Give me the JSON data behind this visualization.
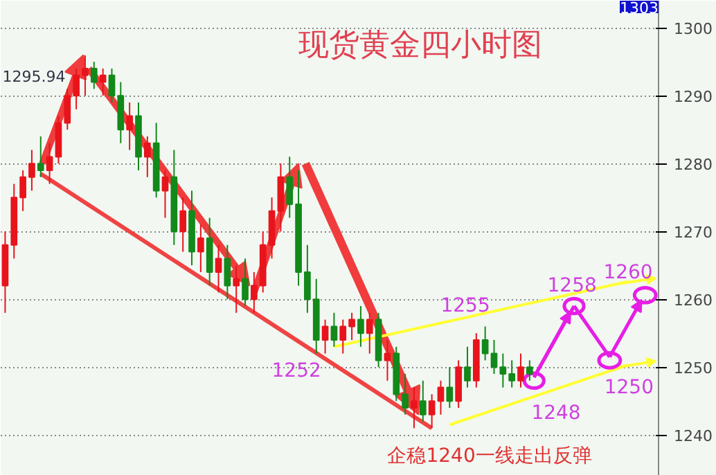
{
  "chart_data": {
    "type": "candlestick",
    "title": "现货黄金四小时图",
    "categories": [
      null,
      null,
      null,
      null,
      null,
      null,
      null,
      null,
      null,
      null,
      null,
      null,
      null,
      null,
      null,
      null,
      null,
      null,
      null,
      null,
      null,
      null,
      null,
      null,
      null,
      null,
      null,
      null,
      null,
      null,
      null,
      null,
      null,
      null,
      null,
      null,
      null,
      null,
      null,
      null,
      null,
      null,
      null,
      null,
      null,
      null,
      null,
      null,
      null,
      null,
      null,
      null,
      null,
      null,
      null,
      null,
      null,
      null,
      null,
      null,
      null,
      null,
      null,
      null,
      null,
      null,
      null,
      null,
      null,
      null,
      null,
      null,
      null,
      null
    ],
    "ohlc": [
      [
        1262,
        1270,
        1258,
        1268
      ],
      [
        1268,
        1277,
        1266,
        1275
      ],
      [
        1275,
        1279,
        1273,
        1278
      ],
      [
        1278,
        1282,
        1276,
        1280
      ],
      [
        1280,
        1284,
        1278,
        1279
      ],
      [
        1279,
        1283,
        1277,
        1281
      ],
      [
        1281,
        1287,
        1280,
        1286
      ],
      [
        1286,
        1291,
        1285,
        1290
      ],
      [
        1290,
        1294,
        1288,
        1293
      ],
      [
        1293,
        1295.94,
        1290,
        1294
      ],
      [
        1294,
        1295,
        1291,
        1292
      ],
      [
        1292,
        1294,
        1290,
        1293
      ],
      [
        1293,
        1294,
        1289,
        1290
      ],
      [
        1290,
        1292,
        1283,
        1285
      ],
      [
        1285,
        1289,
        1282,
        1287
      ],
      [
        1287,
        1289,
        1279,
        1281
      ],
      [
        1281,
        1284,
        1278,
        1283
      ],
      [
        1283,
        1286,
        1275,
        1276
      ],
      [
        1276,
        1279,
        1272,
        1278
      ],
      [
        1278,
        1282,
        1268,
        1270
      ],
      [
        1270,
        1275,
        1267,
        1273
      ],
      [
        1273,
        1276,
        1265,
        1267
      ],
      [
        1267,
        1271,
        1264,
        1269
      ],
      [
        1269,
        1272,
        1262,
        1264
      ],
      [
        1264,
        1268,
        1261,
        1266
      ],
      [
        1266,
        1268,
        1260,
        1262
      ],
      [
        1262,
        1265,
        1258,
        1263
      ],
      [
        1263,
        1266,
        1259,
        1260
      ],
      [
        1260,
        1264,
        1258,
        1262
      ],
      [
        1262,
        1270,
        1261,
        1268
      ],
      [
        1268,
        1275,
        1266,
        1273
      ],
      [
        1273,
        1280,
        1270,
        1278
      ],
      [
        1278,
        1281,
        1272,
        1274
      ],
      [
        1274,
        1279,
        1262,
        1264
      ],
      [
        1264,
        1268,
        1258,
        1260
      ],
      [
        1260,
        1263,
        1252,
        1254
      ],
      [
        1254,
        1257,
        1252,
        1256
      ],
      [
        1256,
        1258,
        1253,
        1254
      ],
      [
        1254,
        1257,
        1252,
        1256
      ],
      [
        1256,
        1258,
        1254,
        1257
      ],
      [
        1257,
        1259,
        1253,
        1255
      ],
      [
        1255,
        1258,
        1252,
        1257
      ],
      [
        1257,
        1258,
        1250,
        1251
      ],
      [
        1251,
        1254,
        1248,
        1252
      ],
      [
        1252,
        1253,
        1245,
        1246
      ],
      [
        1246,
        1249,
        1243,
        1244
      ],
      [
        1244,
        1247,
        1241,
        1245
      ],
      [
        1245,
        1248,
        1242,
        1243
      ],
      [
        1243,
        1246,
        1241,
        1245
      ],
      [
        1245,
        1248,
        1243,
        1247
      ],
      [
        1247,
        1250,
        1244,
        1245
      ],
      [
        1245,
        1251,
        1244,
        1250
      ],
      [
        1250,
        1253,
        1247,
        1248
      ],
      [
        1248,
        1255,
        1247,
        1254
      ],
      [
        1254,
        1256,
        1251,
        1252
      ],
      [
        1252,
        1254,
        1249,
        1250
      ],
      [
        1250,
        1252,
        1247,
        1249
      ],
      [
        1249,
        1251,
        1247,
        1248
      ],
      [
        1248,
        1252,
        1247,
        1250
      ],
      [
        1250,
        1251,
        1248,
        1249
      ],
      null,
      null,
      null,
      null,
      null,
      null,
      null,
      null,
      null,
      null,
      null,
      null,
      null,
      null
    ],
    "ylim": [
      1234,
      1304
    ],
    "yticks": [
      1240,
      1250,
      1260,
      1270,
      1280,
      1290,
      1300
    ],
    "grid": "y",
    "tick_labels": "y",
    "annotations": [
      "1303",
      "1295.94",
      "1252",
      "1255",
      "1258",
      "1260",
      "1250",
      "1248",
      "企稳1240一线走出反弹"
    ]
  }
}
